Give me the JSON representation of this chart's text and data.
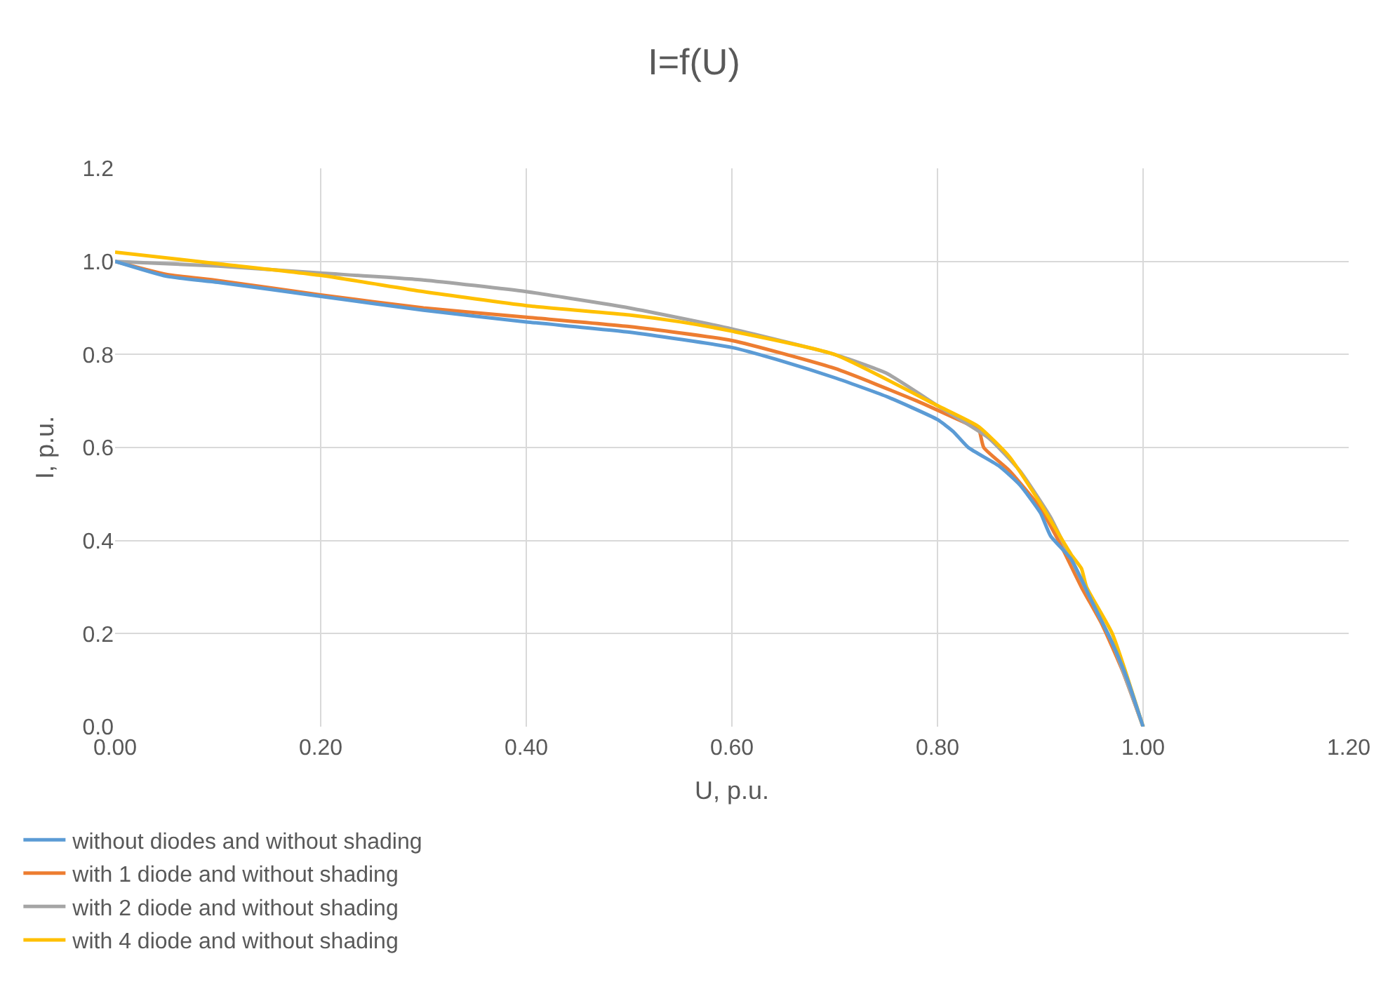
{
  "chart_data": {
    "type": "line",
    "title": "I=f(U)",
    "xlabel": "U, p.u.",
    "ylabel": "I, p.u.",
    "xlim": [
      0,
      1.2
    ],
    "xticks": [
      {
        "value": 0,
        "label": "0.00"
      },
      {
        "value": 0.2,
        "label": "0.20"
      },
      {
        "value": 0.4,
        "label": "0.40"
      },
      {
        "value": 0.6,
        "label": "0.60"
      },
      {
        "value": 0.8,
        "label": "0.80"
      },
      {
        "value": 1.0,
        "label": "1.00"
      },
      {
        "value": 1.2,
        "label": "1.20"
      }
    ],
    "ylim": [
      0,
      1.2
    ],
    "yticks": [
      {
        "value": 0,
        "label": "0.0"
      },
      {
        "value": 0.2,
        "label": "0.2"
      },
      {
        "value": 0.4,
        "label": "0.4"
      },
      {
        "value": 0.6,
        "label": "0.6"
      },
      {
        "value": 0.8,
        "label": "0.8"
      },
      {
        "value": 1.0,
        "label": "1.0"
      },
      {
        "value": 1.2,
        "label": "1.2"
      }
    ],
    "grid": true,
    "legend": "bottom",
    "marker": "none",
    "line_style": "solid",
    "series": [
      {
        "name": "without diodes and without shading",
        "color": "#5b9bd5",
        "x": [
          0,
          0.05,
          0.1,
          0.2,
          0.3,
          0.4,
          0.5,
          0.6,
          0.65,
          0.7,
          0.75,
          0.8,
          0.815,
          0.83,
          0.86,
          0.88,
          0.9,
          0.91,
          0.93,
          0.95,
          0.97,
          0.985,
          1.0
        ],
        "values": [
          1.0,
          0.968,
          0.955,
          0.925,
          0.895,
          0.87,
          0.848,
          0.815,
          0.785,
          0.75,
          0.71,
          0.66,
          0.635,
          0.6,
          0.56,
          0.52,
          0.46,
          0.41,
          0.36,
          0.27,
          0.18,
          0.1,
          0
        ]
      },
      {
        "name": "with 1 diode and without shading",
        "color": "#ed7d31",
        "x": [
          0,
          0.05,
          0.1,
          0.2,
          0.3,
          0.4,
          0.5,
          0.6,
          0.7,
          0.78,
          0.83,
          0.84,
          0.845,
          0.87,
          0.9,
          0.92,
          0.94,
          0.96,
          0.98,
          1.0
        ],
        "values": [
          1.0,
          0.972,
          0.959,
          0.928,
          0.9,
          0.88,
          0.86,
          0.83,
          0.77,
          0.7,
          0.65,
          0.64,
          0.6,
          0.55,
          0.47,
          0.39,
          0.3,
          0.22,
          0.12,
          0
        ]
      },
      {
        "name": "with 2 diode and without shading",
        "color": "#a5a5a5",
        "x": [
          0,
          0.1,
          0.2,
          0.3,
          0.4,
          0.5,
          0.6,
          0.7,
          0.75,
          0.8,
          0.85,
          0.88,
          0.91,
          0.93,
          0.95,
          0.97,
          1.0
        ],
        "values": [
          1.0,
          0.99,
          0.975,
          0.96,
          0.935,
          0.9,
          0.855,
          0.8,
          0.76,
          0.69,
          0.62,
          0.55,
          0.45,
          0.36,
          0.27,
          0.18,
          0
        ]
      },
      {
        "name": "with 4 diode and without shading",
        "color": "#ffc000",
        "x": [
          0,
          0.1,
          0.2,
          0.3,
          0.4,
          0.5,
          0.55,
          0.6,
          0.7,
          0.8,
          0.84,
          0.87,
          0.9,
          0.93,
          0.94,
          0.945,
          0.97,
          1.0
        ],
        "values": [
          1.02,
          0.995,
          0.97,
          0.935,
          0.905,
          0.885,
          0.87,
          0.85,
          0.8,
          0.69,
          0.645,
          0.58,
          0.48,
          0.37,
          0.34,
          0.3,
          0.2,
          0
        ]
      }
    ]
  }
}
